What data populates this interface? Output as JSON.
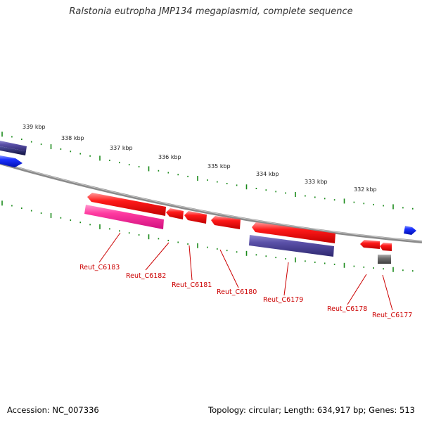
{
  "title": "Ralstonia eutropha JMP134 megaplasmid, complete sequence",
  "footer": {
    "accession": "Accession: NC_007336",
    "topology": "Topology: circular; Length: 634,917 bp; Genes: 513"
  },
  "kbp_ticks": [
    "339 kbp",
    "338 kbp",
    "337 kbp",
    "336 kbp",
    "335 kbp",
    "334 kbp",
    "333 kbp",
    "332 kbp"
  ],
  "gene_labels": [
    "Reut_C6183",
    "Reut_C6182",
    "Reut_C6181",
    "Reut_C6180",
    "Reut_C6179",
    "Reut_C6178",
    "Reut_C6177"
  ],
  "colors": {
    "backbone": "#8a8a8a",
    "tick": "#1a8a1a",
    "cds_red": "#ff1a1a",
    "cds_pink": "#ff3aa0",
    "cds_purple": "#5a50a8",
    "cds_blue": "#1a30ff",
    "cds_grey": "#707070",
    "label": "#cc0000"
  }
}
